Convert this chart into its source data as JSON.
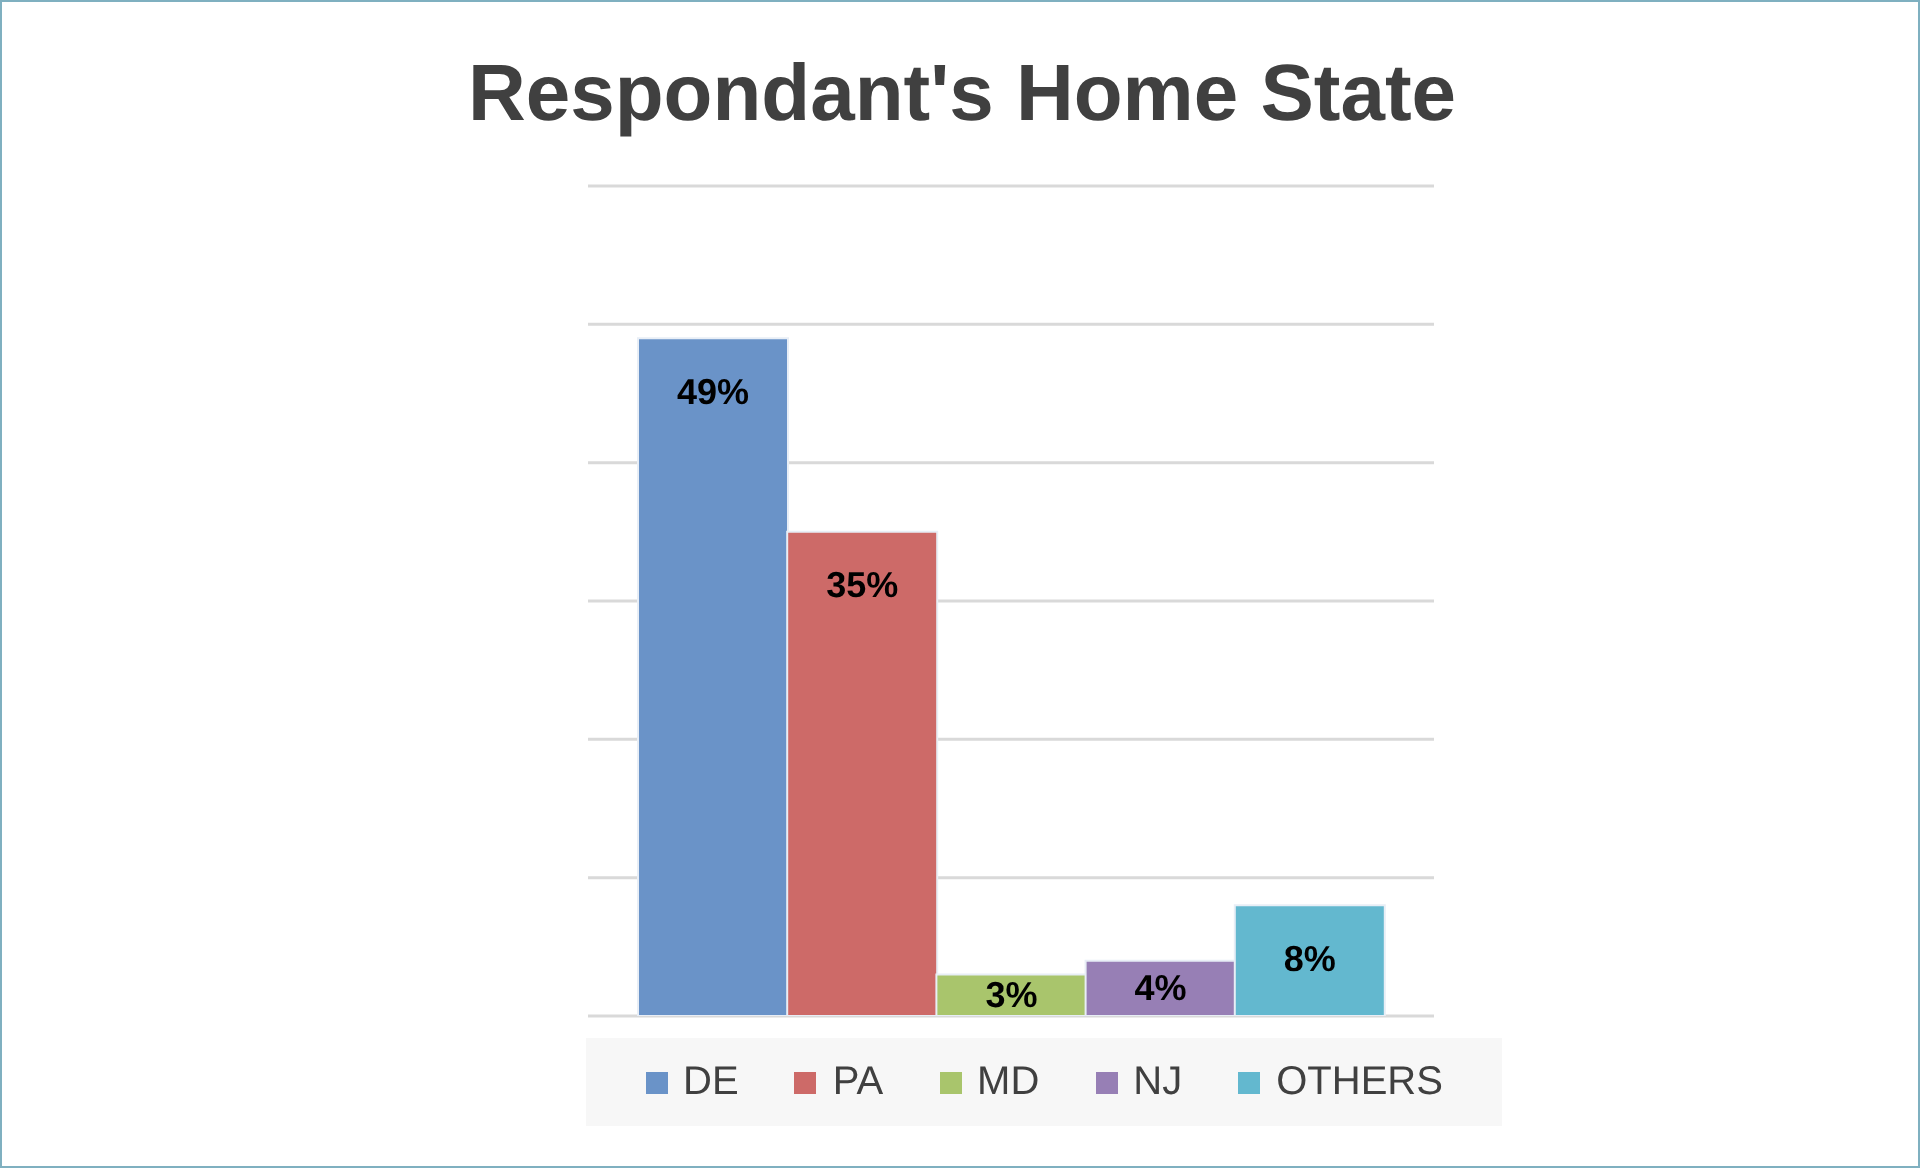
{
  "chart_data": {
    "type": "bar",
    "title": "Respondant's Home State",
    "categories": [
      null,
      null,
      null,
      null,
      null
    ],
    "stacked": true,
    "series": [
      {
        "name": "DE",
        "color": "#6a93c8",
        "values": [
          49,
          null,
          null,
          null,
          null
        ],
        "value_labels": [
          "49%",
          null,
          null,
          null,
          null
        ]
      },
      {
        "name": "PA",
        "color": "#cd6a68",
        "values": [
          null,
          35,
          null,
          null,
          null
        ],
        "value_labels": [
          null,
          "35%",
          null,
          null,
          null
        ]
      },
      {
        "name": "MD",
        "color": "#a9c56c",
        "values": [
          null,
          null,
          3,
          null,
          null
        ],
        "value_labels": [
          null,
          null,
          "3%",
          null,
          null
        ]
      },
      {
        "name": "NJ",
        "color": "#977fb5",
        "values": [
          null,
          null,
          null,
          4,
          null
        ],
        "value_labels": [
          null,
          null,
          null,
          "4%",
          null
        ]
      },
      {
        "name": "OTHERS",
        "color": "#63b8cf",
        "values": [
          null,
          null,
          null,
          null,
          8
        ],
        "value_labels": [
          null,
          null,
          null,
          null,
          "8%"
        ]
      }
    ],
    "ylim": [
      0,
      60
    ],
    "yticks": [
      0,
      10,
      20,
      30,
      40,
      50,
      60
    ],
    "tick_labels": false,
    "grid": "y",
    "legend": "bottom"
  }
}
